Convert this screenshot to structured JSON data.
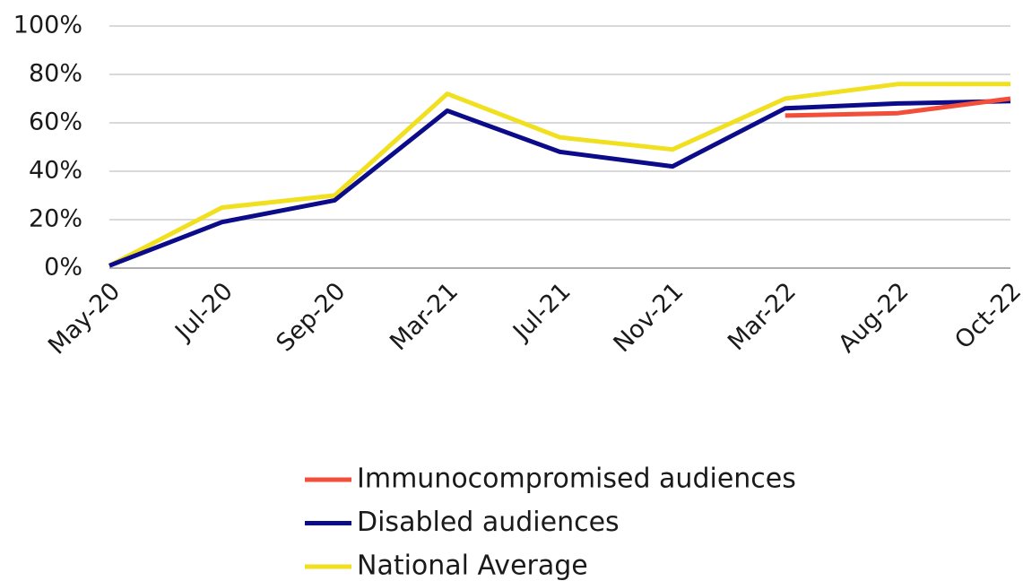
{
  "chart_data": {
    "type": "line",
    "categories": [
      "May-20",
      "Jul-20",
      "Sep-20",
      "Mar-21",
      "Jul-21",
      "Nov-21",
      "Mar-22",
      "Aug-22",
      "Oct-22"
    ],
    "series": [
      {
        "name": "Immunocompromised audiences",
        "color": "#f24e3a",
        "values": [
          null,
          null,
          null,
          null,
          null,
          null,
          63,
          64,
          70
        ]
      },
      {
        "name": "Disabled audiences",
        "color": "#0c0c8a",
        "values": [
          1,
          19,
          28,
          65,
          48,
          42,
          66,
          68,
          69
        ]
      },
      {
        "name": "National Average",
        "color": "#f0e020",
        "values": [
          1,
          25,
          30,
          72,
          54,
          49,
          70,
          76,
          76
        ]
      }
    ],
    "ylim": [
      0,
      100
    ],
    "yticks": [
      {
        "value": 0,
        "label": "0%"
      },
      {
        "value": 20,
        "label": "20%"
      },
      {
        "value": 40,
        "label": "40%"
      },
      {
        "value": 60,
        "label": "60%"
      },
      {
        "value": 80,
        "label": "80%"
      },
      {
        "value": 100,
        "label": "100%"
      }
    ],
    "grid": true,
    "legend": "bottom"
  }
}
